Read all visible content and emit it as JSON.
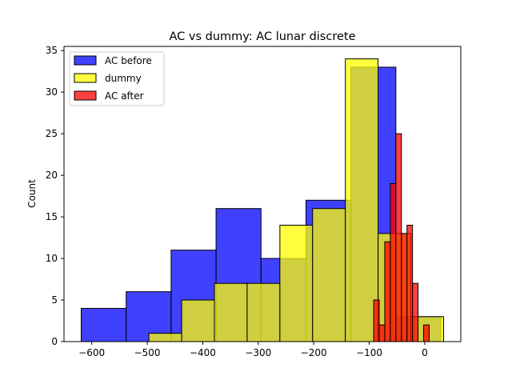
{
  "chart_data": {
    "type": "histogram",
    "title": "AC vs dummy: AC lunar discrete",
    "xlabel": "",
    "ylabel": "Count",
    "xlim": [
      -650,
      65
    ],
    "ylim": [
      0,
      35.5
    ],
    "xticks": [
      -600,
      -500,
      -400,
      -300,
      -200,
      -100,
      0
    ],
    "yticks": [
      0,
      5,
      10,
      15,
      20,
      25,
      30,
      35
    ],
    "legend_position": "upper left",
    "series": [
      {
        "name": "AC before",
        "color": "#0000ff",
        "alpha": 0.75,
        "bins": [
          {
            "x0": -619,
            "x1": -538,
            "count": 4
          },
          {
            "x0": -538,
            "x1": -457,
            "count": 6
          },
          {
            "x0": -457,
            "x1": -376,
            "count": 11
          },
          {
            "x0": -376,
            "x1": -295,
            "count": 16
          },
          {
            "x0": -295,
            "x1": -214,
            "count": 10
          },
          {
            "x0": -214,
            "x1": -133,
            "count": 17
          },
          {
            "x0": -133,
            "x1": -52,
            "count": 33
          },
          {
            "x0": -52,
            "x1": 29,
            "count": 3
          }
        ]
      },
      {
        "name": "dummy",
        "color": "#ffff00",
        "alpha": 0.75,
        "bins": [
          {
            "x0": -497,
            "x1": -438,
            "count": 1
          },
          {
            "x0": -438,
            "x1": -379,
            "count": 5
          },
          {
            "x0": -379,
            "x1": -320,
            "count": 7
          },
          {
            "x0": -320,
            "x1": -261,
            "count": 7
          },
          {
            "x0": -261,
            "x1": -202,
            "count": 14
          },
          {
            "x0": -202,
            "x1": -143,
            "count": 16
          },
          {
            "x0": -143,
            "x1": -84,
            "count": 34
          },
          {
            "x0": -84,
            "x1": -25,
            "count": 13
          },
          {
            "x0": -25,
            "x1": 34,
            "count": 3
          }
        ]
      },
      {
        "name": "AC after",
        "color": "#ff0000",
        "alpha": 0.75,
        "bins": [
          {
            "x0": -92,
            "x1": -82,
            "count": 5
          },
          {
            "x0": -82,
            "x1": -72,
            "count": 2
          },
          {
            "x0": -72,
            "x1": -62,
            "count": 12
          },
          {
            "x0": -62,
            "x1": -52,
            "count": 19
          },
          {
            "x0": -52,
            "x1": -42,
            "count": 25
          },
          {
            "x0": -42,
            "x1": -32,
            "count": 13
          },
          {
            "x0": -32,
            "x1": -22,
            "count": 14
          },
          {
            "x0": -22,
            "x1": -12,
            "count": 7
          },
          {
            "x0": -12,
            "x1": -2,
            "count": 0
          },
          {
            "x0": -2,
            "x1": 8,
            "count": 2
          }
        ]
      }
    ]
  }
}
